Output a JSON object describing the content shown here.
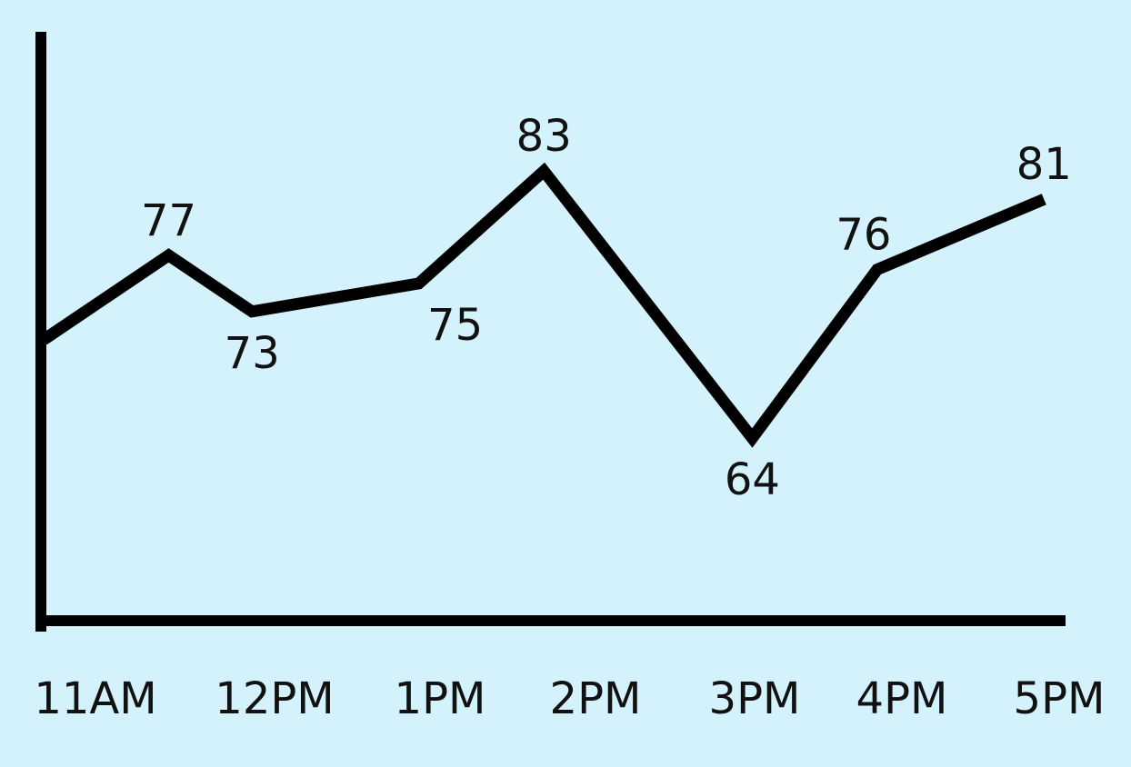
{
  "chart_data": {
    "type": "line",
    "title": "",
    "xlabel": "",
    "ylabel": "",
    "categories": [
      "11AM",
      "12PM",
      "1PM",
      "2PM",
      "3PM",
      "4PM",
      "5PM"
    ],
    "points": [
      {
        "x": 11.0,
        "y": 71,
        "label": ""
      },
      {
        "x": 11.75,
        "y": 77,
        "label": "77"
      },
      {
        "x": 12.25,
        "y": 73,
        "label": "73"
      },
      {
        "x": 13.25,
        "y": 75,
        "label": "75"
      },
      {
        "x": 14.0,
        "y": 83,
        "label": "83"
      },
      {
        "x": 15.25,
        "y": 64,
        "label": "64"
      },
      {
        "x": 16.0,
        "y": 76,
        "label": "76"
      },
      {
        "x": 17.0,
        "y": 81,
        "label": "81"
      }
    ],
    "xlim": [
      11,
      17.5
    ],
    "ylim": [
      51,
      90
    ],
    "grid": false,
    "legend": "none",
    "colors": {
      "background": "#d4f2fc",
      "line": "#000000",
      "text": "#111111"
    }
  }
}
